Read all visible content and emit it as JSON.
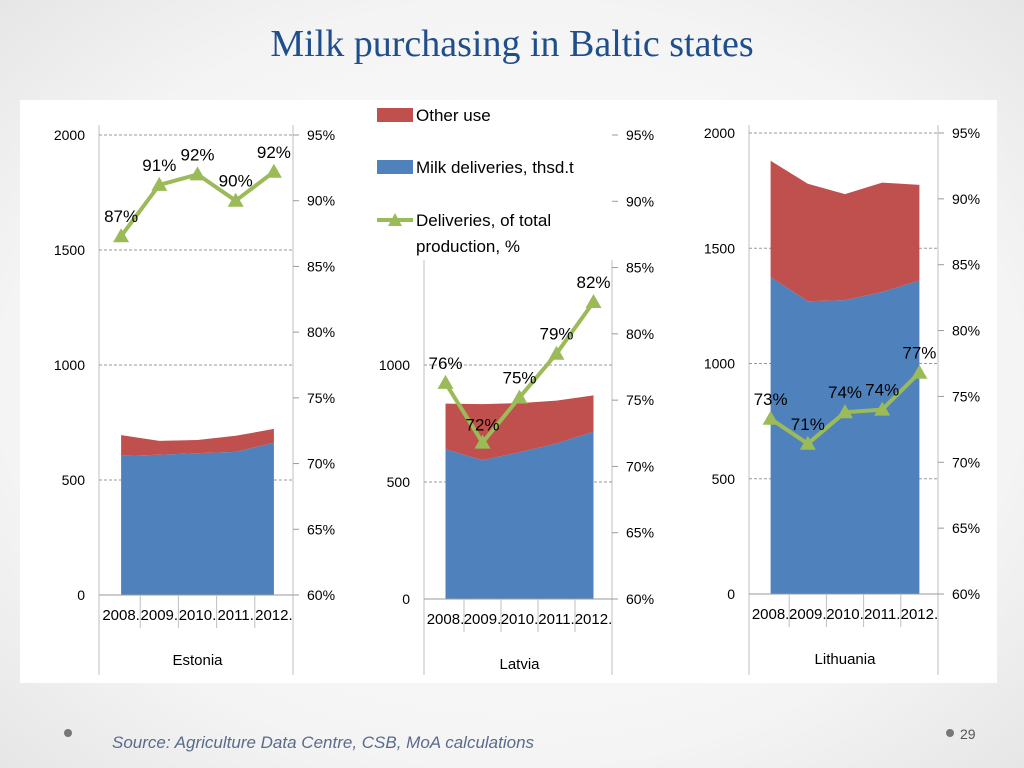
{
  "slide": {
    "title": "Milk purchasing in Baltic states",
    "source": "Source: Agriculture Data Centre, CSB, MoA calculations",
    "page_number": "29"
  },
  "colors": {
    "title": "#1f4e8c",
    "deliveries": "#4f81bd",
    "other_use": "#c0504d",
    "percent_line": "#9bbb59"
  },
  "legend": {
    "items": [
      {
        "label": "Other use",
        "color": "#c0504d",
        "kind": "area"
      },
      {
        "label": "Milk deliveries, thsd.t",
        "color": "#4f81bd",
        "kind": "area"
      },
      {
        "label": "Deliveries,  of total production, %",
        "color": "#9bbb59",
        "kind": "line"
      }
    ]
  },
  "chart_data": [
    {
      "type": "area",
      "xlabel": "Estonia",
      "categories": [
        "2008.",
        "2009.",
        "2010.",
        "2011.",
        "2012."
      ],
      "ylim": [
        0,
        2000
      ],
      "yticks": [
        "0",
        "500",
        "1000",
        "1500",
        "2000"
      ],
      "y2lim": [
        60,
        95
      ],
      "y2ticks": [
        "60%",
        "65%",
        "70%",
        "75%",
        "80%",
        "85%",
        "90%",
        "95%"
      ],
      "series": [
        {
          "name": "Milk deliveries, thsd.t",
          "values": [
            605,
            610,
            617,
            622,
            662
          ]
        },
        {
          "name": "Other use",
          "values": [
            90,
            60,
            57,
            70,
            60
          ]
        },
        {
          "name": "Deliveries,  of total production, %",
          "axis": "right",
          "values": [
            87.3,
            91.2,
            92,
            90,
            92.2
          ],
          "labels": [
            "87%",
            "91%",
            "92%",
            "90%",
            "92%"
          ]
        }
      ]
    },
    {
      "type": "area",
      "xlabel": "Latvia",
      "categories": [
        "2008.",
        "2009.",
        "2010.",
        "2011.",
        "2012."
      ],
      "ylim": [
        0,
        1500
      ],
      "yticks": [
        "0",
        "500",
        "1000"
      ],
      "y2lim": [
        60,
        95
      ],
      "y2ticks": [
        "60%",
        "65%",
        "70%",
        "75%",
        "80%",
        "85%",
        "90%",
        "95%"
      ],
      "series": [
        {
          "name": "Milk deliveries, thsd.t",
          "values": [
            640,
            593,
            627,
            665,
            715
          ]
        },
        {
          "name": "Other use",
          "values": [
            195,
            240,
            210,
            183,
            155
          ]
        },
        {
          "name": "Deliveries,  of total production, %",
          "axis": "right",
          "values": [
            76.3,
            71.8,
            75.2,
            78.5,
            82.4
          ],
          "labels": [
            "76%",
            "72%",
            "75%",
            "79%",
            "82%"
          ]
        }
      ]
    },
    {
      "type": "area",
      "xlabel": "Lithuania",
      "categories": [
        "2008.",
        "2009.",
        "2010.",
        "2011.",
        "2012."
      ],
      "ylim": [
        0,
        2000
      ],
      "yticks": [
        "0",
        "500",
        "1000",
        "1500",
        "2000"
      ],
      "y2lim": [
        60,
        95
      ],
      "y2ticks": [
        "60%",
        "65%",
        "70%",
        "75%",
        "80%",
        "85%",
        "90%",
        "95%"
      ],
      "series": [
        {
          "name": "Milk deliveries, thsd.t",
          "values": [
            1375,
            1270,
            1275,
            1310,
            1360
          ]
        },
        {
          "name": "Other use",
          "values": [
            505,
            510,
            460,
            475,
            415
          ]
        },
        {
          "name": "Deliveries,  of total production, %",
          "axis": "right",
          "values": [
            73.3,
            71.4,
            73.8,
            74,
            76.8
          ],
          "labels": [
            "73%",
            "71%",
            "74%",
            "74%",
            "77%"
          ]
        }
      ]
    }
  ]
}
